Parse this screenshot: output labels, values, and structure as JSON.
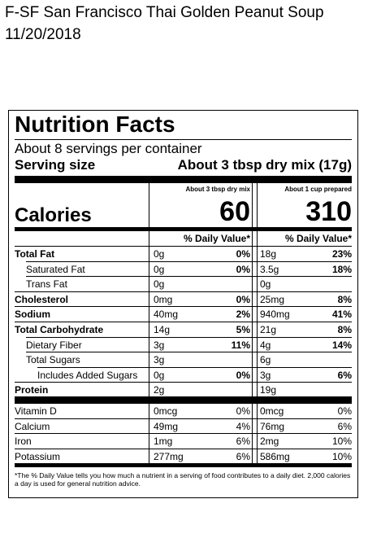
{
  "header": {
    "title": "F-SF San Francisco Thai Golden Peanut Soup",
    "date": "11/20/2018"
  },
  "label": {
    "title": "Nutrition Facts",
    "servings": "About 8 servings per container",
    "serving_size_label": "Serving size",
    "serving_size": "About 3 tbsp dry mix (17g)",
    "columns": [
      "About 3 tbsp dry mix",
      "About 1 cup prepared"
    ],
    "calories_label": "Calories",
    "calories": [
      60,
      310
    ],
    "dv_header": "% Daily Value*",
    "rows": [
      {
        "name": "Total Fat",
        "bold": true,
        "indent": 0,
        "a": "0g",
        "a_dv": "0%",
        "b": "18g",
        "b_dv": "23%"
      },
      {
        "name": "Saturated Fat",
        "bold": false,
        "indent": 1,
        "a": "0g",
        "a_dv": "0%",
        "b": "3.5g",
        "b_dv": "18%"
      },
      {
        "name": "Trans Fat",
        "bold": false,
        "indent": 1,
        "a": "0g",
        "b": "0g"
      },
      {
        "name": "Cholesterol",
        "bold": true,
        "indent": 0,
        "a": "0mg",
        "a_dv": "0%",
        "b": "25mg",
        "b_dv": "8%"
      },
      {
        "name": "Sodium",
        "bold": true,
        "indent": 0,
        "a": "40mg",
        "a_dv": "2%",
        "b": "940mg",
        "b_dv": "41%"
      },
      {
        "name": "Total Carbohydrate",
        "bold": true,
        "indent": 0,
        "a": "14g",
        "a_dv": "5%",
        "b": "21g",
        "b_dv": "8%"
      },
      {
        "name": "Dietary Fiber",
        "bold": false,
        "indent": 1,
        "a": "3g",
        "a_dv": "11%",
        "b": "4g",
        "b_dv": "14%"
      },
      {
        "name": "Total Sugars",
        "bold": false,
        "indent": 1,
        "a": "3g",
        "b": "6g"
      },
      {
        "name": "Includes Added Sugars",
        "bold": false,
        "indent": 2,
        "a": "0g",
        "a_dv": "0%",
        "b": "3g",
        "b_dv": "6%"
      },
      {
        "name": "Protein",
        "bold": true,
        "indent": 0,
        "a": "2g",
        "b": "19g"
      }
    ],
    "vitamins": [
      {
        "name": "Vitamin D",
        "a": "0mcg",
        "a_dv": "0%",
        "b": "0mcg",
        "b_dv": "0%"
      },
      {
        "name": "Calcium",
        "a": "49mg",
        "a_dv": "4%",
        "b": "76mg",
        "b_dv": "6%"
      },
      {
        "name": "Iron",
        "a": "1mg",
        "a_dv": "6%",
        "b": "2mg",
        "b_dv": "10%"
      },
      {
        "name": "Potassium",
        "a": "277mg",
        "a_dv": "6%",
        "b": "586mg",
        "b_dv": "10%"
      }
    ],
    "footnote": "*The % Daily Value tells you how much a nutrient in a serving of food contributes to a daily diet. 2,000 calories a day is used for general nutrition advice."
  }
}
